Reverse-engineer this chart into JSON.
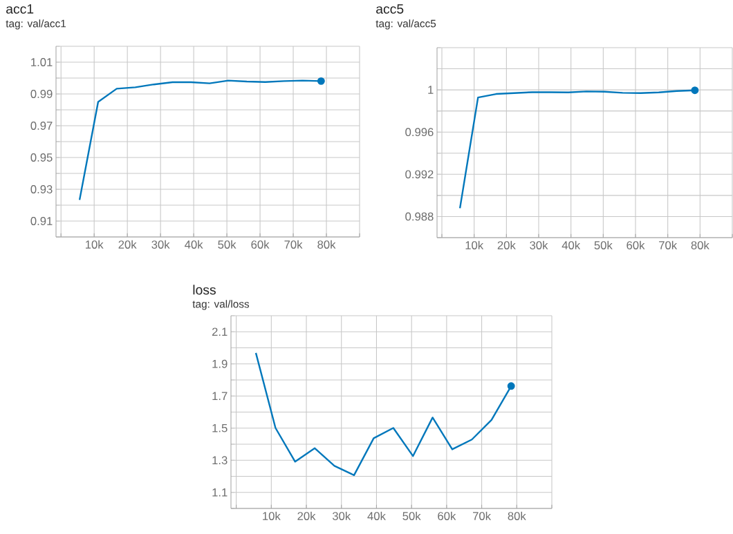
{
  "chart_data": [
    {
      "type": "line",
      "title": "acc1",
      "subtitle": "tag: val/acc1",
      "grid": true,
      "x": [
        5600,
        11200,
        16800,
        22400,
        28000,
        33600,
        39200,
        44800,
        50400,
        56000,
        61600,
        67200,
        72800,
        78400
      ],
      "series": [
        {
          "color": "#0077bb",
          "values": [
            0.9233,
            0.985,
            0.9933,
            0.9942,
            0.996,
            0.9974,
            0.9974,
            0.9967,
            0.9984,
            0.9978,
            0.9975,
            0.9981,
            0.9984,
            0.9981
          ]
        },
        {
          "type": "scatter",
          "marker": "circle",
          "color": "#0077bb",
          "values": [
            null,
            null,
            null,
            null,
            null,
            null,
            null,
            null,
            null,
            null,
            null,
            null,
            null,
            0.9981
          ]
        }
      ],
      "xlim": [
        -1500,
        90000
      ],
      "xticks": [
        {
          "value": 0,
          "label": null
        },
        {
          "value": 10000,
          "label": "10k"
        },
        {
          "value": 20000,
          "label": "20k"
        },
        {
          "value": 30000,
          "label": "30k"
        },
        {
          "value": 40000,
          "label": "40k"
        },
        {
          "value": 50000,
          "label": "50k"
        },
        {
          "value": 60000,
          "label": "60k"
        },
        {
          "value": 70000,
          "label": "70k"
        },
        {
          "value": 80000,
          "label": "80k"
        },
        {
          "value": 90000,
          "label": null
        }
      ],
      "ylim": [
        0.9,
        1.02
      ],
      "yticks": [
        {
          "value": 0.9,
          "label": null
        },
        0.91,
        {
          "value": 0.92,
          "label": null
        },
        0.93,
        {
          "value": 0.94,
          "label": null
        },
        0.95,
        {
          "value": 0.96,
          "label": null
        },
        0.97,
        {
          "value": 0.98,
          "label": null
        },
        0.99,
        {
          "value": 1.0,
          "label": null
        },
        1.01,
        {
          "value": 1.02,
          "label": null
        }
      ]
    },
    {
      "type": "line",
      "title": "acc5",
      "subtitle": "tag: val/acc5",
      "grid": true,
      "x": [
        5600,
        11200,
        16800,
        22400,
        28000,
        33600,
        39200,
        44800,
        50400,
        56000,
        61600,
        67200,
        72800,
        78400
      ],
      "series": [
        {
          "color": "#0077bb",
          "values": [
            0.98879,
            0.99928,
            0.99961,
            0.9997,
            0.99978,
            0.99978,
            0.99976,
            0.99985,
            0.99983,
            0.99972,
            0.9997,
            0.99976,
            0.99989,
            0.99996
          ]
        },
        {
          "type": "scatter",
          "marker": "circle",
          "color": "#0077bb",
          "values": [
            null,
            null,
            null,
            null,
            null,
            null,
            null,
            null,
            null,
            null,
            null,
            null,
            null,
            0.99996
          ]
        }
      ],
      "xlim": [
        -1500,
        90000
      ],
      "xticks": [
        {
          "value": 0,
          "label": null
        },
        {
          "value": 10000,
          "label": "10k"
        },
        {
          "value": 20000,
          "label": "20k"
        },
        {
          "value": 30000,
          "label": "30k"
        },
        {
          "value": 40000,
          "label": "40k"
        },
        {
          "value": 50000,
          "label": "50k"
        },
        {
          "value": 60000,
          "label": "60k"
        },
        {
          "value": 70000,
          "label": "70k"
        },
        {
          "value": 80000,
          "label": "80k"
        },
        {
          "value": 90000,
          "label": null
        }
      ],
      "ylim": [
        0.986,
        1.004
      ],
      "yticks": [
        {
          "value": 0.986,
          "label": null
        },
        0.988,
        {
          "value": 0.99,
          "label": null
        },
        0.992,
        {
          "value": 0.994,
          "label": null
        },
        0.996,
        {
          "value": 0.998,
          "label": null
        },
        1,
        {
          "value": 1.002,
          "label": null
        },
        {
          "value": 1.004,
          "label": null
        }
      ]
    },
    {
      "type": "line",
      "title": "loss",
      "subtitle": "tag: val/loss",
      "grid": true,
      "x": [
        5600,
        11200,
        16800,
        22400,
        28000,
        33600,
        39200,
        44800,
        50400,
        56000,
        61600,
        67200,
        72800,
        78400
      ],
      "series": [
        {
          "color": "#0077bb",
          "values": [
            1.968,
            1.501,
            1.291,
            1.375,
            1.265,
            1.207,
            1.437,
            1.501,
            1.326,
            1.566,
            1.368,
            1.429,
            1.551,
            1.762
          ]
        },
        {
          "type": "scatter",
          "marker": "circle",
          "color": "#0077bb",
          "values": [
            null,
            null,
            null,
            null,
            null,
            null,
            null,
            null,
            null,
            null,
            null,
            null,
            null,
            1.762
          ]
        }
      ],
      "xlim": [
        -1500,
        90000
      ],
      "xticks": [
        {
          "value": 0,
          "label": null
        },
        {
          "value": 10000,
          "label": "10k"
        },
        {
          "value": 20000,
          "label": "20k"
        },
        {
          "value": 30000,
          "label": "30k"
        },
        {
          "value": 40000,
          "label": "40k"
        },
        {
          "value": 50000,
          "label": "50k"
        },
        {
          "value": 60000,
          "label": "60k"
        },
        {
          "value": 70000,
          "label": "70k"
        },
        {
          "value": 80000,
          "label": "80k"
        },
        {
          "value": 90000,
          "label": null
        }
      ],
      "ylim": [
        1.0,
        2.2
      ],
      "yticks": [
        {
          "value": 1.0,
          "label": null
        },
        1.1,
        {
          "value": 1.2,
          "label": null
        },
        1.3,
        {
          "value": 1.4,
          "label": null
        },
        1.5,
        {
          "value": 1.6,
          "label": null
        },
        1.7,
        {
          "value": 1.8,
          "label": null
        },
        1.9,
        {
          "value": 2.0,
          "label": null
        },
        2.1,
        {
          "value": 2.2,
          "label": null
        }
      ]
    }
  ]
}
